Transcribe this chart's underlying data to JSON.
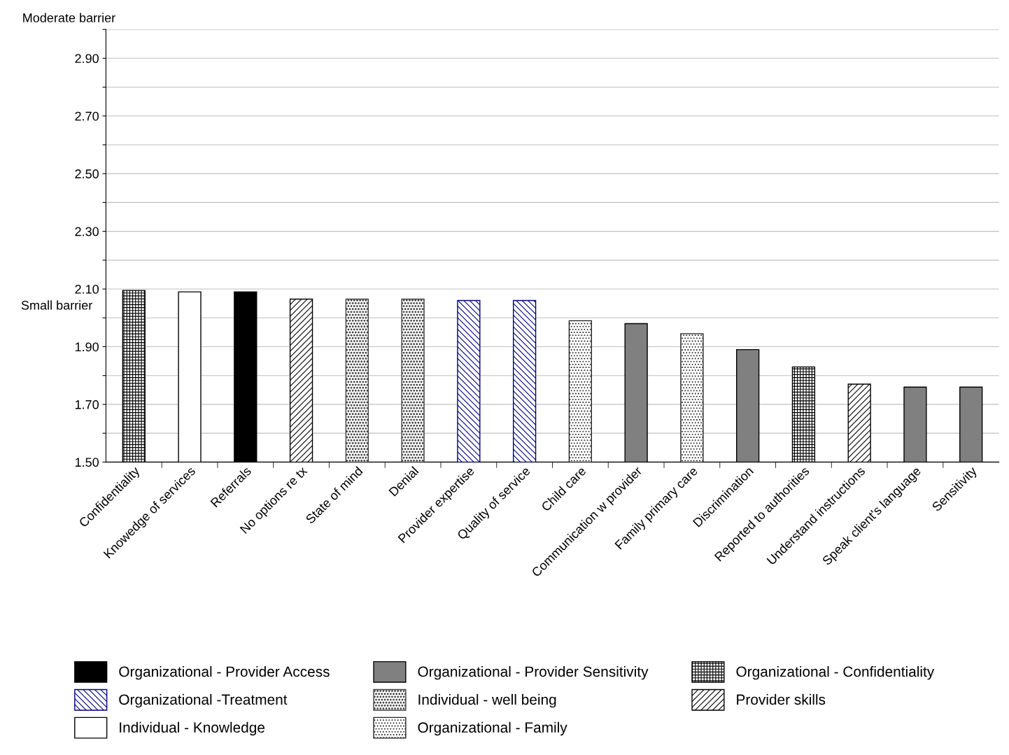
{
  "chart_data": {
    "type": "bar",
    "categories": [
      "Confidentiality",
      "Knowedge of services",
      "Referrals",
      "No options re tx",
      "State of mind",
      "Denial",
      "Provider expertise",
      "Quality of service",
      "Child care",
      "Communication w provider",
      "Family primary care",
      "Discrimination",
      "Reported to authorities",
      "Understand instructions",
      "Speak client's language",
      "Sensitivity"
    ],
    "series": [
      {
        "name": "Organizational - Provider Access",
        "color": "#000000",
        "values": [
          null,
          null,
          2.09,
          null,
          null,
          null,
          null,
          null,
          null,
          null,
          null,
          null,
          null,
          null,
          null,
          null
        ]
      },
      {
        "name": "Organizational -Treatment",
        "color": "#000080",
        "values": [
          null,
          null,
          null,
          null,
          null,
          null,
          2.06,
          2.06,
          null,
          null,
          null,
          null,
          null,
          null,
          null,
          null
        ]
      },
      {
        "name": "Individual - Knowledge",
        "color": "#ffffff",
        "values": [
          null,
          2.09,
          null,
          null,
          null,
          null,
          null,
          null,
          null,
          null,
          null,
          null,
          null,
          null,
          null,
          null
        ]
      },
      {
        "name": "Organizational - Provider Sensitivity",
        "color": "#808080",
        "values": [
          null,
          null,
          null,
          null,
          null,
          null,
          null,
          null,
          null,
          1.98,
          null,
          1.89,
          null,
          null,
          1.76,
          1.76
        ]
      },
      {
        "name": "Individual - well being",
        "color": "#404040",
        "values": [
          null,
          null,
          null,
          null,
          2.065,
          2.065,
          null,
          null,
          null,
          null,
          null,
          null,
          null,
          null,
          null,
          null
        ]
      },
      {
        "name": "Organizational - Family",
        "color": "#202020",
        "values": [
          null,
          null,
          null,
          null,
          null,
          null,
          null,
          null,
          1.99,
          null,
          1.945,
          null,
          null,
          null,
          null,
          null
        ]
      },
      {
        "name": "Organizational - Confidentiality",
        "color": "#000001",
        "values": [
          2.095,
          null,
          null,
          null,
          null,
          null,
          null,
          null,
          null,
          null,
          null,
          null,
          1.83,
          null,
          null,
          null
        ]
      },
      {
        "name": "Provider skills",
        "color": "#000002",
        "values": [
          null,
          null,
          null,
          2.065,
          null,
          null,
          null,
          null,
          null,
          null,
          null,
          null,
          null,
          1.77,
          null,
          null
        ]
      }
    ],
    "ylim": [
      1.5,
      3.0
    ],
    "yticks": [
      {
        "value": 1.5,
        "label": "1.50"
      },
      {
        "value": 1.6,
        "label": null
      },
      {
        "value": 1.7,
        "label": "1.70"
      },
      {
        "value": 1.8,
        "label": null
      },
      {
        "value": 1.9,
        "label": "1.90"
      },
      {
        "value": 2.0,
        "label": null
      },
      {
        "value": 2.1,
        "label": "2.10"
      },
      {
        "value": 2.2,
        "label": null
      },
      {
        "value": 2.3,
        "label": "2.30"
      },
      {
        "value": 2.4,
        "label": null
      },
      {
        "value": 2.5,
        "label": "2.50"
      },
      {
        "value": 2.6,
        "label": null
      },
      {
        "value": 2.7,
        "label": "2.70"
      },
      {
        "value": 2.8,
        "label": null
      },
      {
        "value": 2.9,
        "label": "2.90"
      },
      {
        "value": 3.0,
        "label": null
      }
    ],
    "annotations": [
      "Moderate barrier",
      "Small barrier"
    ],
    "grid": "y",
    "legend": "bottom"
  }
}
